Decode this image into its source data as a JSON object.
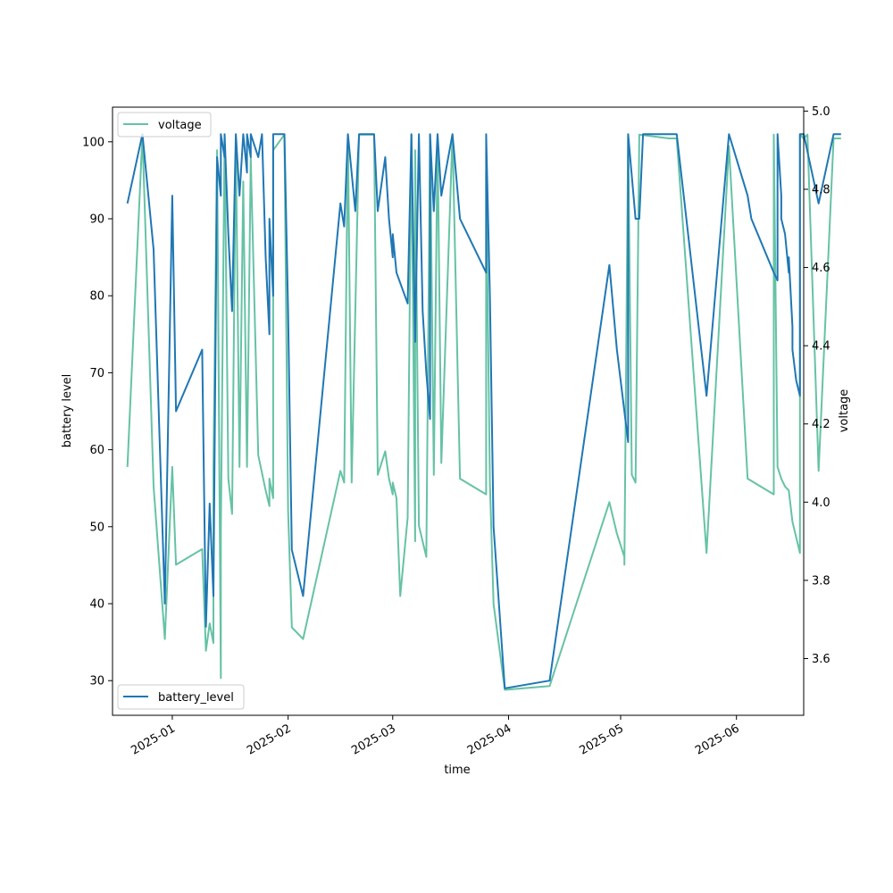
{
  "chart_data": {
    "type": "line",
    "xlabel": "time",
    "ylabel": "battery level",
    "y2label": "voltage",
    "x_ticks": [
      "2025-01",
      "2025-02",
      "2025-03",
      "2025-04",
      "2025-05",
      "2025-06"
    ],
    "y_ticks": [
      30,
      40,
      50,
      60,
      70,
      80,
      90,
      100
    ],
    "y2_ticks": [
      "3.6",
      "3.8",
      "4.0",
      "4.2",
      "4.4",
      "4.6",
      "4.8",
      "5.0"
    ],
    "xlim": [
      "2024-12-16",
      "2025-06-19"
    ],
    "ylim": [
      25.5,
      104.5
    ],
    "y2lim": [
      3.455,
      5.01
    ],
    "grid": false,
    "series": [
      {
        "name": "battery_level",
        "axis": "left",
        "color": "#1f77b4",
        "legend_position": "lower-left",
        "points": [
          [
            "2024-12-20",
            92
          ],
          [
            "2024-12-24",
            101
          ],
          [
            "2024-12-27",
            86
          ],
          [
            "2024-12-30",
            40
          ],
          [
            "2025-01-01",
            93
          ],
          [
            "2025-01-02",
            65
          ],
          [
            "2025-01-09",
            73
          ],
          [
            "2025-01-10",
            37
          ],
          [
            "2025-01-11",
            53
          ],
          [
            "2025-01-12",
            41
          ],
          [
            "2025-01-13",
            98
          ],
          [
            "2025-01-14",
            93
          ],
          [
            "2025-01-14",
            101
          ],
          [
            "2025-01-15",
            98
          ],
          [
            "2025-01-15",
            101
          ],
          [
            "2025-01-16",
            88
          ],
          [
            "2025-01-17",
            78
          ],
          [
            "2025-01-18",
            101
          ],
          [
            "2025-01-19",
            93
          ],
          [
            "2025-01-20",
            101
          ],
          [
            "2025-01-21",
            96
          ],
          [
            "2025-01-21",
            101
          ],
          [
            "2025-01-22",
            98
          ],
          [
            "2025-01-22",
            101
          ],
          [
            "2025-01-24",
            98
          ],
          [
            "2025-01-25",
            101
          ],
          [
            "2025-01-26",
            85
          ],
          [
            "2025-01-27",
            75
          ],
          [
            "2025-01-27",
            90
          ],
          [
            "2025-01-28",
            80
          ],
          [
            "2025-01-28",
            101
          ],
          [
            "2025-01-31",
            101
          ],
          [
            "2025-02-01",
            78
          ],
          [
            "2025-02-02",
            47
          ],
          [
            "2025-02-05",
            41
          ],
          [
            "2025-02-15",
            92
          ],
          [
            "2025-02-16",
            89
          ],
          [
            "2025-02-17",
            101
          ],
          [
            "2025-02-19",
            91
          ],
          [
            "2025-02-20",
            101
          ],
          [
            "2025-02-24",
            101
          ],
          [
            "2025-02-25",
            91
          ],
          [
            "2025-02-27",
            98
          ],
          [
            "2025-02-28",
            90
          ],
          [
            "2025-03-01",
            85
          ],
          [
            "2025-03-01",
            88
          ],
          [
            "2025-03-02",
            83
          ],
          [
            "2025-03-05",
            79
          ],
          [
            "2025-03-06",
            101
          ],
          [
            "2025-03-07",
            74
          ],
          [
            "2025-03-08",
            101
          ],
          [
            "2025-03-09",
            78
          ],
          [
            "2025-03-10",
            70
          ],
          [
            "2025-03-11",
            64
          ],
          [
            "2025-03-11",
            101
          ],
          [
            "2025-03-12",
            91
          ],
          [
            "2025-03-13",
            101
          ],
          [
            "2025-03-14",
            93
          ],
          [
            "2025-03-17",
            101
          ],
          [
            "2025-03-19",
            90
          ],
          [
            "2025-03-26",
            83
          ],
          [
            "2025-03-26",
            101
          ],
          [
            "2025-03-27",
            80
          ],
          [
            "2025-03-28",
            50
          ],
          [
            "2025-03-31",
            29
          ],
          [
            "2025-04-12",
            30
          ],
          [
            "2025-04-28",
            84
          ],
          [
            "2025-04-30",
            73
          ],
          [
            "2025-05-02",
            65
          ],
          [
            "2025-05-03",
            61
          ],
          [
            "2025-05-03",
            101
          ],
          [
            "2025-05-05",
            90
          ],
          [
            "2025-05-06",
            90
          ],
          [
            "2025-05-07",
            101
          ],
          [
            "2025-05-16",
            101
          ],
          [
            "2025-05-24",
            67
          ],
          [
            "2025-05-30",
            101
          ],
          [
            "2025-06-04",
            93
          ],
          [
            "2025-06-05",
            90
          ],
          [
            "2025-06-11",
            83
          ],
          [
            "2025-06-12",
            82
          ],
          [
            "2025-06-12",
            101
          ],
          [
            "2025-06-13",
            93
          ],
          [
            "2025-06-13",
            90
          ],
          [
            "2025-06-14",
            88
          ],
          [
            "2025-06-15",
            83
          ],
          [
            "2025-06-15",
            85
          ],
          [
            "2025-06-16",
            76
          ],
          [
            "2025-06-16",
            73
          ],
          [
            "2025-06-17",
            69
          ],
          [
            "2025-06-18",
            67
          ],
          [
            "2025-06-18",
            101
          ],
          [
            "2025-06-19",
            101
          ],
          [
            "2025-06-23",
            92
          ],
          [
            "2025-06-27",
            101
          ],
          [
            "2025-06-29",
            101
          ]
        ]
      },
      {
        "name": "voltage",
        "axis": "right",
        "color": "#66c2a5",
        "legend_position": "upper-left",
        "points": [
          [
            "2024-12-20",
            4.09
          ],
          [
            "2024-12-24",
            4.94
          ],
          [
            "2024-12-27",
            4.04
          ],
          [
            "2024-12-30",
            3.65
          ],
          [
            "2025-01-01",
            4.09
          ],
          [
            "2025-01-02",
            3.84
          ],
          [
            "2025-01-09",
            3.88
          ],
          [
            "2025-01-10",
            3.62
          ],
          [
            "2025-01-11",
            3.69
          ],
          [
            "2025-01-12",
            3.64
          ],
          [
            "2025-01-12",
            4.09
          ],
          [
            "2025-01-13",
            4.9
          ],
          [
            "2025-01-14",
            3.55
          ],
          [
            "2025-01-14",
            3.92
          ],
          [
            "2025-01-15",
            4.94
          ],
          [
            "2025-01-16",
            4.06
          ],
          [
            "2025-01-17",
            3.97
          ],
          [
            "2025-01-18",
            4.92
          ],
          [
            "2025-01-19",
            4.09
          ],
          [
            "2025-01-20",
            4.82
          ],
          [
            "2025-01-21",
            4.09
          ],
          [
            "2025-01-22",
            4.88
          ],
          [
            "2025-01-24",
            4.12
          ],
          [
            "2025-01-26",
            4.03
          ],
          [
            "2025-01-27",
            3.99
          ],
          [
            "2025-01-27",
            4.06
          ],
          [
            "2025-01-28",
            4.01
          ],
          [
            "2025-01-28",
            4.9
          ],
          [
            "2025-01-31",
            4.94
          ],
          [
            "2025-02-01",
            3.98
          ],
          [
            "2025-02-02",
            3.68
          ],
          [
            "2025-02-05",
            3.65
          ],
          [
            "2025-02-15",
            4.08
          ],
          [
            "2025-02-16",
            4.05
          ],
          [
            "2025-02-17",
            4.94
          ],
          [
            "2025-02-18",
            4.05
          ],
          [
            "2025-02-20",
            4.94
          ],
          [
            "2025-02-24",
            4.94
          ],
          [
            "2025-02-25",
            4.07
          ],
          [
            "2025-02-27",
            4.13
          ],
          [
            "2025-02-28",
            4.06
          ],
          [
            "2025-03-01",
            4.02
          ],
          [
            "2025-03-01",
            4.05
          ],
          [
            "2025-03-02",
            4.01
          ],
          [
            "2025-03-03",
            3.76
          ],
          [
            "2025-03-05",
            3.96
          ],
          [
            "2025-03-06",
            4.94
          ],
          [
            "2025-03-07",
            3.9
          ],
          [
            "2025-03-07",
            4.9
          ],
          [
            "2025-03-08",
            3.94
          ],
          [
            "2025-03-10",
            3.86
          ],
          [
            "2025-03-11",
            4.94
          ],
          [
            "2025-03-12",
            4.07
          ],
          [
            "2025-03-13",
            4.94
          ],
          [
            "2025-03-14",
            4.1
          ],
          [
            "2025-03-17",
            4.94
          ],
          [
            "2025-03-19",
            4.06
          ],
          [
            "2025-03-26",
            4.02
          ],
          [
            "2025-03-26",
            4.84
          ],
          [
            "2025-03-27",
            4.05
          ],
          [
            "2025-03-28",
            3.74
          ],
          [
            "2025-03-31",
            3.52
          ],
          [
            "2025-04-12",
            3.53
          ],
          [
            "2025-04-28",
            4.0
          ],
          [
            "2025-04-30",
            3.92
          ],
          [
            "2025-05-02",
            3.86
          ],
          [
            "2025-05-02",
            3.84
          ],
          [
            "2025-05-03",
            4.94
          ],
          [
            "2025-05-04",
            4.07
          ],
          [
            "2025-05-05",
            4.05
          ],
          [
            "2025-05-06",
            4.94
          ],
          [
            "2025-05-14",
            4.93
          ],
          [
            "2025-05-16",
            4.93
          ],
          [
            "2025-05-24",
            3.87
          ],
          [
            "2025-05-30",
            4.91
          ],
          [
            "2025-06-04",
            4.06
          ],
          [
            "2025-06-11",
            4.02
          ],
          [
            "2025-06-11",
            4.94
          ],
          [
            "2025-06-12",
            4.09
          ],
          [
            "2025-06-13",
            4.06
          ],
          [
            "2025-06-14",
            4.04
          ],
          [
            "2025-06-15",
            4.03
          ],
          [
            "2025-06-16",
            3.95
          ],
          [
            "2025-06-18",
            3.87
          ],
          [
            "2025-06-18",
            4.94
          ],
          [
            "2025-06-19",
            4.93
          ],
          [
            "2025-06-20",
            4.94
          ],
          [
            "2025-06-23",
            4.08
          ],
          [
            "2025-06-27",
            4.93
          ],
          [
            "2025-06-29",
            4.93
          ]
        ]
      }
    ]
  }
}
